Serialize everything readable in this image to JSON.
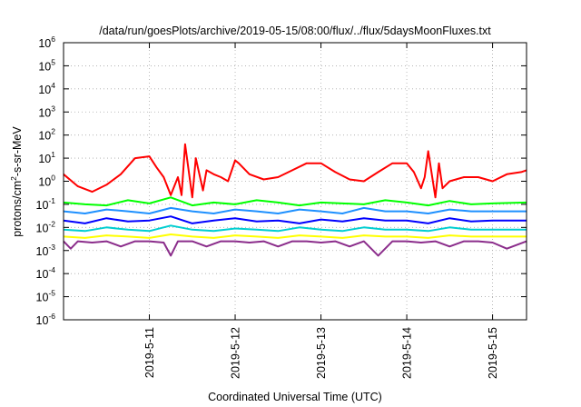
{
  "chart_data": {
    "type": "line",
    "title": "/data/run/goesPlots/archive/2019-05-15/08:00/flux/../flux/5daysMoonFluxes.txt",
    "xlabel": "Coordinated Universal Time (UTC)",
    "ylabel": {
      "base": "protons/cm",
      "sup": "2",
      "rest": "-s-sr-MeV"
    },
    "y_scale": "log",
    "ylim": [
      1e-06,
      1000000.0
    ],
    "y_ticks": [
      {
        "value": 1e-06,
        "base": "10",
        "exp": "-6"
      },
      {
        "value": 1e-05,
        "base": "10",
        "exp": "-5"
      },
      {
        "value": 0.0001,
        "base": "10",
        "exp": "-4"
      },
      {
        "value": 0.001,
        "base": "10",
        "exp": "-3"
      },
      {
        "value": 0.01,
        "base": "10",
        "exp": "-2"
      },
      {
        "value": 0.1,
        "base": "10",
        "exp": "-1"
      },
      {
        "value": 1.0,
        "base": "10",
        "exp": "0"
      },
      {
        "value": 10.0,
        "base": "10",
        "exp": "1"
      },
      {
        "value": 100.0,
        "base": "10",
        "exp": "2"
      },
      {
        "value": 1000.0,
        "base": "10",
        "exp": "3"
      },
      {
        "value": 10000.0,
        "base": "10",
        "exp": "4"
      },
      {
        "value": 100000.0,
        "base": "10",
        "exp": "5"
      },
      {
        "value": 1000000.0,
        "base": "10",
        "exp": "6"
      }
    ],
    "xlim": [
      "2019-05-10 00:00",
      "2019-05-15 09:30"
    ],
    "x_ticks": [
      "2019-5-11",
      "2019-5-12",
      "2019-5-13",
      "2019-5-14",
      "2019-5-15"
    ],
    "x_tick_dates": [
      "2019-05-11",
      "2019-05-12",
      "2019-05-13",
      "2019-05-14",
      "2019-05-15"
    ],
    "grid": true,
    "legend": "none",
    "series": [
      {
        "color": "#ff0000",
        "x": [
          "2019-05-10 00:00",
          "2019-05-10 04:00",
          "2019-05-10 08:00",
          "2019-05-10 12:00",
          "2019-05-10 16:00",
          "2019-05-10 20:00",
          "2019-05-11 00:00",
          "2019-05-11 02:00",
          "2019-05-11 04:00",
          "2019-05-11 06:00",
          "2019-05-11 08:00",
          "2019-05-11 09:00",
          "2019-05-11 10:00",
          "2019-05-11 12:00",
          "2019-05-11 13:00",
          "2019-05-11 15:00",
          "2019-05-11 16:00",
          "2019-05-11 18:00",
          "2019-05-11 20:00",
          "2019-05-11 22:00",
          "2019-05-12 00:00",
          "2019-05-12 01:00",
          "2019-05-12 04:00",
          "2019-05-12 08:00",
          "2019-05-12 12:00",
          "2019-05-12 16:00",
          "2019-05-12 20:00",
          "2019-05-13 00:00",
          "2019-05-13 04:00",
          "2019-05-13 08:00",
          "2019-05-13 12:00",
          "2019-05-13 16:00",
          "2019-05-13 20:00",
          "2019-05-14 00:00",
          "2019-05-14 02:00",
          "2019-05-14 04:00",
          "2019-05-14 05:00",
          "2019-05-14 06:00",
          "2019-05-14 08:00",
          "2019-05-14 09:00",
          "2019-05-14 10:00",
          "2019-05-14 12:00",
          "2019-05-14 16:00",
          "2019-05-14 20:00",
          "2019-05-15 00:00",
          "2019-05-15 04:00",
          "2019-05-15 08:00",
          "2019-05-15 09:30"
        ],
        "values": [
          2.0,
          0.6,
          0.35,
          0.7,
          2.0,
          10,
          12,
          4,
          1.5,
          0.25,
          1.5,
          0.25,
          40,
          0.2,
          10,
          0.4,
          3,
          2,
          1.5,
          1.0,
          8,
          6,
          2,
          1.2,
          1.5,
          3,
          6,
          6,
          2.5,
          1.2,
          1.0,
          2.5,
          6,
          6,
          2.5,
          0.5,
          1.5,
          20,
          0.2,
          6,
          0.5,
          1.0,
          1.5,
          1.5,
          1.0,
          2,
          2.5,
          3
        ]
      },
      {
        "color": "#00ff00",
        "x": [
          "2019-05-10 00:00",
          "2019-05-10 06:00",
          "2019-05-10 12:00",
          "2019-05-10 18:00",
          "2019-05-11 00:00",
          "2019-05-11 06:00",
          "2019-05-11 12:00",
          "2019-05-11 18:00",
          "2019-05-12 00:00",
          "2019-05-12 06:00",
          "2019-05-12 12:00",
          "2019-05-12 18:00",
          "2019-05-13 00:00",
          "2019-05-13 06:00",
          "2019-05-13 12:00",
          "2019-05-13 18:00",
          "2019-05-14 00:00",
          "2019-05-14 06:00",
          "2019-05-14 12:00",
          "2019-05-14 18:00",
          "2019-05-15 00:00",
          "2019-05-15 09:30"
        ],
        "values": [
          0.12,
          0.1,
          0.09,
          0.15,
          0.11,
          0.2,
          0.09,
          0.12,
          0.1,
          0.15,
          0.12,
          0.09,
          0.12,
          0.11,
          0.1,
          0.15,
          0.12,
          0.09,
          0.14,
          0.1,
          0.11,
          0.12
        ]
      },
      {
        "color": "#1e90ff",
        "x": [
          "2019-05-10 00:00",
          "2019-05-10 06:00",
          "2019-05-10 12:00",
          "2019-05-10 18:00",
          "2019-05-11 00:00",
          "2019-05-11 06:00",
          "2019-05-11 12:00",
          "2019-05-11 18:00",
          "2019-05-12 00:00",
          "2019-05-12 06:00",
          "2019-05-12 12:00",
          "2019-05-12 18:00",
          "2019-05-13 00:00",
          "2019-05-13 06:00",
          "2019-05-13 12:00",
          "2019-05-13 18:00",
          "2019-05-14 00:00",
          "2019-05-14 06:00",
          "2019-05-14 12:00",
          "2019-05-14 18:00",
          "2019-05-15 00:00",
          "2019-05-15 09:30"
        ],
        "values": [
          0.05,
          0.04,
          0.06,
          0.05,
          0.04,
          0.07,
          0.05,
          0.04,
          0.06,
          0.05,
          0.04,
          0.06,
          0.05,
          0.04,
          0.07,
          0.05,
          0.05,
          0.04,
          0.06,
          0.05,
          0.05,
          0.05
        ]
      },
      {
        "color": "#0000ff",
        "x": [
          "2019-05-10 00:00",
          "2019-05-10 06:00",
          "2019-05-10 12:00",
          "2019-05-10 18:00",
          "2019-05-11 00:00",
          "2019-05-11 06:00",
          "2019-05-11 12:00",
          "2019-05-11 18:00",
          "2019-05-12 00:00",
          "2019-05-12 06:00",
          "2019-05-12 12:00",
          "2019-05-12 18:00",
          "2019-05-13 00:00",
          "2019-05-13 06:00",
          "2019-05-13 12:00",
          "2019-05-13 18:00",
          "2019-05-14 00:00",
          "2019-05-14 06:00",
          "2019-05-14 12:00",
          "2019-05-14 18:00",
          "2019-05-15 00:00",
          "2019-05-15 09:30"
        ],
        "values": [
          0.02,
          0.015,
          0.025,
          0.018,
          0.02,
          0.03,
          0.015,
          0.02,
          0.025,
          0.018,
          0.02,
          0.015,
          0.022,
          0.018,
          0.025,
          0.02,
          0.02,
          0.015,
          0.025,
          0.018,
          0.02,
          0.02
        ]
      },
      {
        "color": "#00ced1",
        "x": [
          "2019-05-10 00:00",
          "2019-05-10 06:00",
          "2019-05-10 12:00",
          "2019-05-10 18:00",
          "2019-05-11 00:00",
          "2019-05-11 06:00",
          "2019-05-11 12:00",
          "2019-05-11 18:00",
          "2019-05-12 00:00",
          "2019-05-12 06:00",
          "2019-05-12 12:00",
          "2019-05-12 18:00",
          "2019-05-13 00:00",
          "2019-05-13 06:00",
          "2019-05-13 12:00",
          "2019-05-13 18:00",
          "2019-05-14 00:00",
          "2019-05-14 06:00",
          "2019-05-14 12:00",
          "2019-05-14 18:00",
          "2019-05-15 00:00",
          "2019-05-15 09:30"
        ],
        "values": [
          0.008,
          0.007,
          0.01,
          0.008,
          0.007,
          0.012,
          0.008,
          0.007,
          0.009,
          0.008,
          0.007,
          0.01,
          0.008,
          0.007,
          0.01,
          0.008,
          0.008,
          0.007,
          0.01,
          0.008,
          0.008,
          0.008
        ]
      },
      {
        "color": "#ffff00",
        "x": [
          "2019-05-10 00:00",
          "2019-05-10 06:00",
          "2019-05-10 12:00",
          "2019-05-10 18:00",
          "2019-05-11 00:00",
          "2019-05-11 06:00",
          "2019-05-11 12:00",
          "2019-05-11 18:00",
          "2019-05-12 00:00",
          "2019-05-12 06:00",
          "2019-05-12 12:00",
          "2019-05-12 18:00",
          "2019-05-13 00:00",
          "2019-05-13 06:00",
          "2019-05-13 12:00",
          "2019-05-13 18:00",
          "2019-05-14 00:00",
          "2019-05-14 06:00",
          "2019-05-14 12:00",
          "2019-05-14 18:00",
          "2019-05-15 00:00",
          "2019-05-15 09:30"
        ],
        "values": [
          0.004,
          0.0035,
          0.0045,
          0.004,
          0.0035,
          0.005,
          0.004,
          0.0035,
          0.0045,
          0.004,
          0.0035,
          0.0045,
          0.004,
          0.0035,
          0.0045,
          0.004,
          0.004,
          0.0035,
          0.0045,
          0.004,
          0.004,
          0.004
        ]
      },
      {
        "color": "#8b2d8b",
        "x": [
          "2019-05-10 00:00",
          "2019-05-10 02:00",
          "2019-05-10 04:00",
          "2019-05-10 08:00",
          "2019-05-10 12:00",
          "2019-05-10 16:00",
          "2019-05-10 20:00",
          "2019-05-11 00:00",
          "2019-05-11 04:00",
          "2019-05-11 06:00",
          "2019-05-11 08:00",
          "2019-05-11 12:00",
          "2019-05-11 16:00",
          "2019-05-11 20:00",
          "2019-05-12 00:00",
          "2019-05-12 04:00",
          "2019-05-12 08:00",
          "2019-05-12 12:00",
          "2019-05-12 16:00",
          "2019-05-12 20:00",
          "2019-05-13 00:00",
          "2019-05-13 04:00",
          "2019-05-13 08:00",
          "2019-05-13 12:00",
          "2019-05-13 16:00",
          "2019-05-13 20:00",
          "2019-05-14 00:00",
          "2019-05-14 04:00",
          "2019-05-14 08:00",
          "2019-05-14 12:00",
          "2019-05-14 16:00",
          "2019-05-14 20:00",
          "2019-05-15 00:00",
          "2019-05-15 04:00",
          "2019-05-15 09:30"
        ],
        "values": [
          0.0025,
          0.0012,
          0.0025,
          0.0022,
          0.0025,
          0.0015,
          0.0025,
          0.0025,
          0.0022,
          0.0006,
          0.0025,
          0.0025,
          0.0015,
          0.0025,
          0.0025,
          0.0022,
          0.0025,
          0.0015,
          0.0025,
          0.0025,
          0.0022,
          0.0025,
          0.0015,
          0.0025,
          0.0006,
          0.0025,
          0.0025,
          0.0022,
          0.0025,
          0.0015,
          0.0025,
          0.0025,
          0.0022,
          0.0012,
          0.0025
        ]
      }
    ]
  }
}
